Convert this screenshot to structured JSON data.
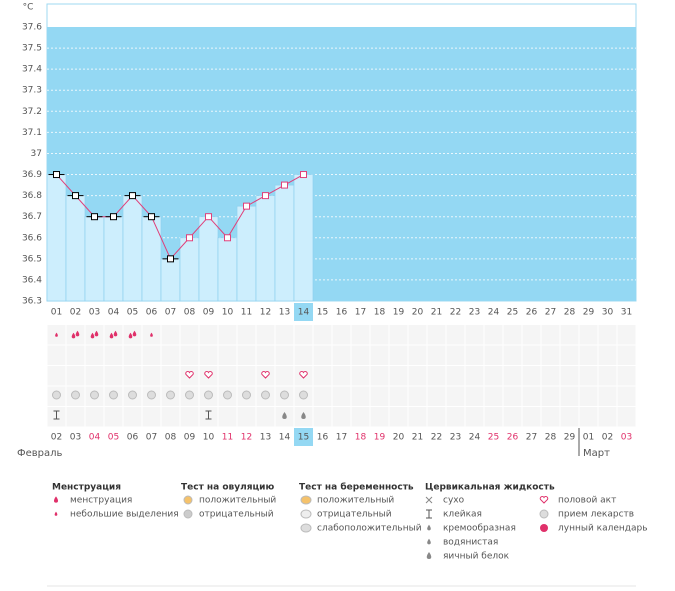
{
  "chart_data": {
    "type": "line",
    "y_label": "°C",
    "categories": [
      "01",
      "02",
      "03",
      "04",
      "05",
      "06",
      "07",
      "08",
      "09",
      "10",
      "11",
      "12",
      "13",
      "14",
      "15",
      "16",
      "17",
      "18",
      "19",
      "20",
      "21",
      "22",
      "23",
      "24",
      "25",
      "26",
      "27",
      "28",
      "29",
      "30",
      "31"
    ],
    "series": [
      {
        "color": "#e0407a",
        "values": [
          36.9,
          36.8,
          36.7,
          36.7,
          36.8,
          36.7,
          36.5,
          36.6,
          36.7,
          36.6,
          36.75,
          36.8,
          36.85,
          36.9,
          null,
          null,
          null,
          null,
          null,
          null,
          null,
          null,
          null,
          null,
          null,
          null,
          null,
          null,
          null,
          null,
          null
        ],
        "marker_colors": [
          "#000000",
          "#000000",
          "#000000",
          "#000000",
          "#000000",
          "#000000",
          "#000000",
          "#e0407a",
          "#e0407a",
          "#e0407a",
          "#e0407a",
          "#e0407a",
          "#e0407a",
          "#e0407a",
          null,
          null,
          null,
          null,
          null,
          null,
          null,
          null,
          null,
          null,
          null,
          null,
          null,
          null,
          null,
          null,
          null
        ]
      }
    ],
    "ylim": [
      36.3,
      37.6
    ],
    "yticks": [
      36.3,
      36.4,
      36.5,
      36.6,
      36.7,
      36.8,
      36.9,
      37,
      37.1,
      37.2,
      37.3,
      37.4,
      37.5,
      37.6
    ],
    "grid": true,
    "dates": [
      "02",
      "03",
      "04",
      "05",
      "06",
      "07",
      "08",
      "09",
      "10",
      "11",
      "12",
      "13",
      "14",
      "15",
      "16",
      "17",
      "18",
      "19",
      "20",
      "21",
      "22",
      "23",
      "24",
      "25",
      "26",
      "27",
      "28",
      "29",
      "01",
      "02",
      "03"
    ],
    "date_colors": [
      "#555",
      "#555",
      "#e0306a",
      "#e0306a",
      "#555",
      "#555",
      "#555",
      "#555",
      "#555",
      "#e0306a",
      "#e0306a",
      "#555",
      "#555",
      "#555",
      "#555",
      "#555",
      "#e0306a",
      "#e0306a",
      "#555",
      "#555",
      "#555",
      "#555",
      "#555",
      "#e0306a",
      "#e0306a",
      "#555",
      "#555",
      "#555",
      "#555",
      "#555",
      "#e0306a"
    ],
    "months": [
      "Февраль",
      "Март"
    ],
    "legend": [
      {
        "title": "Менструация",
        "items": [
          "менструация",
          "небольшие выделения"
        ]
      },
      {
        "title": "Тест на овуляцию",
        "items": [
          "положительный",
          "отрицательный"
        ]
      },
      {
        "title": "Тест на беременность",
        "items": [
          "положительный",
          "отрицательный",
          "слабоположительный"
        ]
      },
      {
        "title": "Цервикальная жидкость",
        "items": [
          "сухо",
          "клейкая",
          "кремообразная",
          "водянистая",
          "яичный белок"
        ]
      },
      {
        "items": [
          "половой акт",
          "прием лекарств",
          "лунный календарь"
        ]
      }
    ]
  }
}
